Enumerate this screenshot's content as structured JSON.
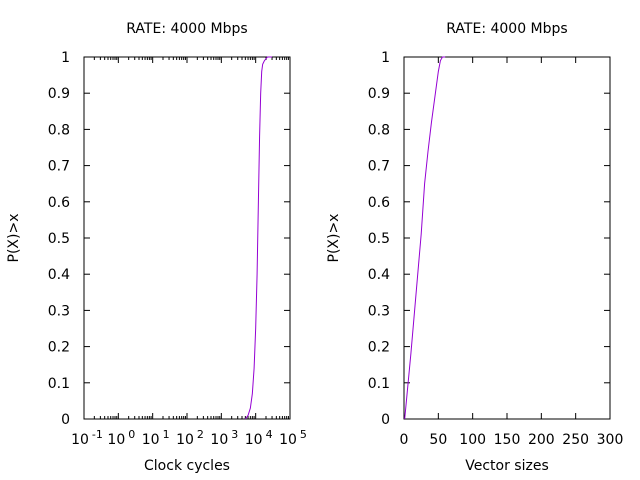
{
  "chart_data": [
    {
      "type": "line",
      "title": "RATE: 4000 Mbps",
      "xlabel": "Clock cycles",
      "ylabel": "P(X)>x",
      "xscale": "log",
      "xlim": [
        0.1,
        100000
      ],
      "ylim": [
        0,
        1
      ],
      "x_ticks": [
        {
          "mantissa": "10",
          "exp": "-1"
        },
        {
          "mantissa": "10",
          "exp": "0"
        },
        {
          "mantissa": "10",
          "exp": "1"
        },
        {
          "mantissa": "10",
          "exp": "2"
        },
        {
          "mantissa": "10",
          "exp": "3"
        },
        {
          "mantissa": "10",
          "exp": "4"
        },
        {
          "mantissa": "10",
          "exp": "5"
        }
      ],
      "x_tick_values": [
        0.1,
        1,
        10,
        100,
        1000,
        10000,
        100000
      ],
      "y_ticks": [
        "0",
        "0.1",
        "0.2",
        "0.3",
        "0.4",
        "0.5",
        "0.6",
        "0.7",
        "0.8",
        "0.9",
        "1"
      ],
      "y_tick_values": [
        0,
        0.1,
        0.2,
        0.3,
        0.4,
        0.5,
        0.6,
        0.7,
        0.8,
        0.9,
        1
      ],
      "grid": false,
      "line_color": "#9400d3",
      "series": [
        {
          "x": [
            5000,
            6000,
            7000,
            8000,
            9000,
            10000,
            11000,
            12000,
            13000,
            14000,
            15000,
            16000,
            18000,
            20000,
            22000,
            25000,
            30000
          ],
          "y": [
            0,
            0.01,
            0.03,
            0.07,
            0.14,
            0.25,
            0.4,
            0.6,
            0.78,
            0.9,
            0.96,
            0.98,
            0.99,
            0.995,
            1,
            1,
            1
          ]
        }
      ]
    },
    {
      "type": "line",
      "title": "RATE: 4000 Mbps",
      "xlabel": "Vector sizes",
      "ylabel": "P(X)>x",
      "xlim": [
        0,
        300
      ],
      "ylim": [
        0,
        1
      ],
      "x_ticks": [
        "0",
        "50",
        "100",
        "150",
        "200",
        "250",
        "300"
      ],
      "x_tick_values": [
        0,
        50,
        100,
        150,
        200,
        250,
        300
      ],
      "y_ticks": [
        "0",
        "0.1",
        "0.2",
        "0.3",
        "0.4",
        "0.5",
        "0.6",
        "0.7",
        "0.8",
        "0.9",
        "1"
      ],
      "y_tick_values": [
        0,
        0.1,
        0.2,
        0.3,
        0.4,
        0.5,
        0.6,
        0.7,
        0.8,
        0.9,
        1
      ],
      "grid": false,
      "line_color": "#9400d3",
      "series": [
        {
          "x": [
            1,
            5,
            10,
            15,
            20,
            25,
            30,
            35,
            40,
            45,
            50,
            53,
            56,
            60
          ],
          "y": [
            0,
            0.08,
            0.18,
            0.29,
            0.4,
            0.51,
            0.65,
            0.74,
            0.82,
            0.89,
            0.96,
            0.99,
            1,
            1
          ]
        }
      ]
    }
  ]
}
